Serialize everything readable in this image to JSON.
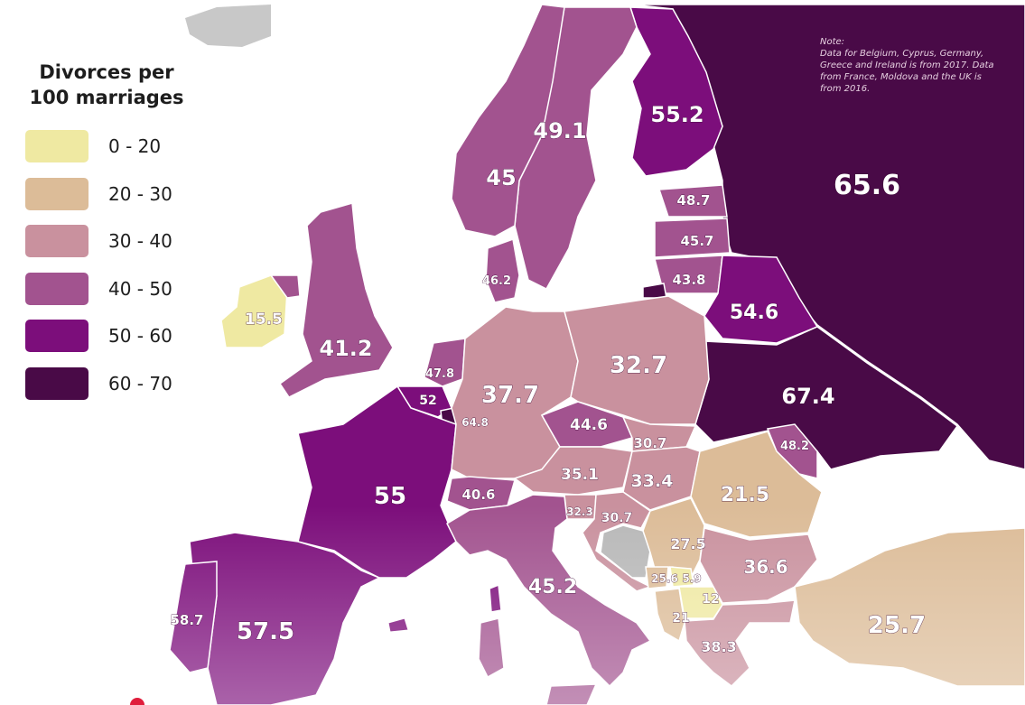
{
  "legend": {
    "title_line1": "Divorces per",
    "title_line2": "100 marriages",
    "bins": [
      {
        "label": "0 - 20",
        "color": "#efe9a2"
      },
      {
        "label": "20 - 30",
        "color": "#dcbc98"
      },
      {
        "label": "30 - 40",
        "color": "#c9919e"
      },
      {
        "label": "40 - 50",
        "color": "#a2538f"
      },
      {
        "label": "50 - 60",
        "color": "#7c0e7b"
      },
      {
        "label": "60 - 70",
        "color": "#490a47"
      }
    ]
  },
  "note": {
    "heading": "Note:",
    "text": "Data for Belgium, Cyprus, Germany, Greece and Ireland is from 2017. Data from France, Moldova and the UK is from 2016."
  },
  "values": {
    "russia": "65.6",
    "finland": "55.2",
    "sweden": "49.1",
    "norway": "45",
    "estonia": "48.7",
    "latvia": "45.7",
    "lithuania": "43.8",
    "belarus": "54.6",
    "ukraine": "67.4",
    "moldova": "48.2",
    "denmark": "46.2",
    "ireland": "15.5",
    "uk": "41.2",
    "netherlands": "47.8",
    "belgium": "52",
    "luxembourg": "64.8",
    "germany": "37.7",
    "poland": "32.7",
    "czechia": "44.6",
    "slovakia": "30.7",
    "austria": "35.1",
    "hungary": "33.4",
    "romania": "21.5",
    "switzerland": "40.6",
    "slovenia": "32.3",
    "croatia": "30.7",
    "serbia": "27.5",
    "bulgaria": "36.6",
    "montenegro": "25.6",
    "kosovo": "5.9",
    "north_macedonia": "12",
    "albania": "21",
    "greece": "38.3",
    "turkey": "25.7",
    "france": "55",
    "italy": "45.2",
    "spain": "57.5",
    "portugal": "58.7"
  }
}
